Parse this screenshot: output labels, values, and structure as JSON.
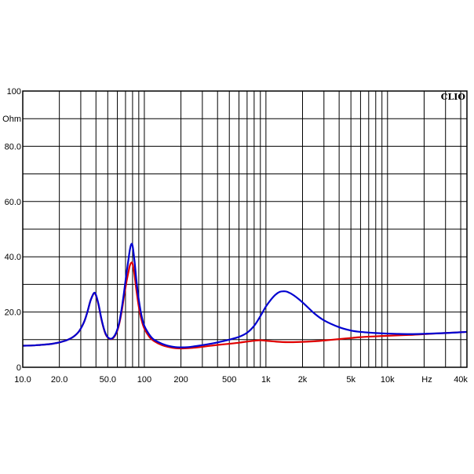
{
  "chart_data": {
    "type": "line",
    "brand_label": "CLIO",
    "y_unit_label": "Ohm",
    "x_unit_label": "Hz",
    "x_scale": "log",
    "xlim": [
      10,
      45000
    ],
    "ylim": [
      0,
      100
    ],
    "grid": true,
    "legend": "none",
    "x_tick_labels": [
      {
        "value": 10,
        "label": "10.0"
      },
      {
        "value": 20,
        "label": "20.0"
      },
      {
        "value": 50,
        "label": "50.0"
      },
      {
        "value": 100,
        "label": "100"
      },
      {
        "value": 200,
        "label": "200"
      },
      {
        "value": 500,
        "label": "500"
      },
      {
        "value": 1000,
        "label": "1k"
      },
      {
        "value": 2000,
        "label": "2k"
      },
      {
        "value": 5000,
        "label": "5k"
      },
      {
        "value": 10000,
        "label": "10k"
      },
      {
        "value": 40000,
        "label": "40k"
      }
    ],
    "y_tick_labels": [
      {
        "value": 0,
        "label": "0"
      },
      {
        "value": 20,
        "label": "20.0"
      },
      {
        "value": 40,
        "label": "40.0"
      },
      {
        "value": 60,
        "label": "60.0"
      },
      {
        "value": 80,
        "label": "80.0"
      },
      {
        "value": 100,
        "label": "100"
      }
    ],
    "series": [
      {
        "color": "#e00000",
        "points": [
          [
            10,
            7.8
          ],
          [
            12,
            7.9
          ],
          [
            14,
            8.1
          ],
          [
            16,
            8.3
          ],
          [
            18,
            8.6
          ],
          [
            20,
            9.0
          ],
          [
            23,
            9.8
          ],
          [
            26,
            11.0
          ],
          [
            29,
            13.0
          ],
          [
            32,
            16.5
          ],
          [
            34,
            20.0
          ],
          [
            36,
            24.0
          ],
          [
            38,
            26.5
          ],
          [
            39,
            26.8
          ],
          [
            40,
            26.0
          ],
          [
            42,
            22.5
          ],
          [
            44,
            18.0
          ],
          [
            46,
            14.5
          ],
          [
            48,
            12.0
          ],
          [
            50,
            10.8
          ],
          [
            53,
            10.2
          ],
          [
            56,
            10.8
          ],
          [
            59,
            12.5
          ],
          [
            62,
            15.5
          ],
          [
            65,
            20.0
          ],
          [
            68,
            25.5
          ],
          [
            71,
            30.5
          ],
          [
            74,
            34.5
          ],
          [
            76,
            36.8
          ],
          [
            78,
            37.8
          ],
          [
            80,
            37.5
          ],
          [
            83,
            33.5
          ],
          [
            86,
            28.0
          ],
          [
            90,
            22.0
          ],
          [
            95,
            17.0
          ],
          [
            100,
            14.0
          ],
          [
            110,
            11.0
          ],
          [
            120,
            9.5
          ],
          [
            140,
            8.0
          ],
          [
            160,
            7.3
          ],
          [
            180,
            6.9
          ],
          [
            200,
            6.8
          ],
          [
            230,
            6.9
          ],
          [
            260,
            7.1
          ],
          [
            300,
            7.4
          ],
          [
            350,
            7.8
          ],
          [
            400,
            8.1
          ],
          [
            500,
            8.5
          ],
          [
            600,
            8.9
          ],
          [
            700,
            9.3
          ],
          [
            800,
            9.6
          ],
          [
            900,
            9.8
          ],
          [
            1000,
            9.6
          ],
          [
            1200,
            9.3
          ],
          [
            1500,
            9.1
          ],
          [
            2000,
            9.2
          ],
          [
            2500,
            9.4
          ],
          [
            3000,
            9.7
          ],
          [
            4000,
            10.2
          ],
          [
            5000,
            10.6
          ],
          [
            6000,
            10.9
          ],
          [
            8000,
            11.2
          ],
          [
            10000,
            11.4
          ],
          [
            15000,
            11.7
          ],
          [
            20000,
            12.0
          ],
          [
            30000,
            12.4
          ],
          [
            45000,
            12.8
          ]
        ]
      },
      {
        "color": "#0000d0",
        "points": [
          [
            10,
            7.8
          ],
          [
            12,
            7.9
          ],
          [
            14,
            8.1
          ],
          [
            16,
            8.3
          ],
          [
            18,
            8.6
          ],
          [
            20,
            9.0
          ],
          [
            23,
            9.8
          ],
          [
            26,
            11.0
          ],
          [
            29,
            13.0
          ],
          [
            32,
            16.5
          ],
          [
            34,
            20.0
          ],
          [
            36,
            24.0
          ],
          [
            38,
            26.5
          ],
          [
            39,
            27.0
          ],
          [
            40,
            26.2
          ],
          [
            42,
            22.8
          ],
          [
            44,
            18.3
          ],
          [
            46,
            14.7
          ],
          [
            48,
            12.2
          ],
          [
            50,
            10.9
          ],
          [
            53,
            10.3
          ],
          [
            56,
            11.0
          ],
          [
            59,
            12.8
          ],
          [
            62,
            16.0
          ],
          [
            65,
            21.0
          ],
          [
            68,
            27.0
          ],
          [
            71,
            33.5
          ],
          [
            74,
            39.0
          ],
          [
            76,
            42.5
          ],
          [
            78,
            44.5
          ],
          [
            80,
            44.0
          ],
          [
            83,
            38.5
          ],
          [
            86,
            31.5
          ],
          [
            90,
            24.5
          ],
          [
            95,
            18.5
          ],
          [
            100,
            15.0
          ],
          [
            110,
            11.8
          ],
          [
            120,
            10.0
          ],
          [
            140,
            8.5
          ],
          [
            160,
            7.7
          ],
          [
            180,
            7.3
          ],
          [
            200,
            7.2
          ],
          [
            230,
            7.3
          ],
          [
            260,
            7.6
          ],
          [
            300,
            8.0
          ],
          [
            350,
            8.5
          ],
          [
            400,
            9.0
          ],
          [
            500,
            10.0
          ],
          [
            600,
            11.0
          ],
          [
            700,
            12.5
          ],
          [
            800,
            15.0
          ],
          [
            900,
            18.5
          ],
          [
            1000,
            22.0
          ],
          [
            1100,
            24.5
          ],
          [
            1200,
            26.3
          ],
          [
            1300,
            27.3
          ],
          [
            1400,
            27.5
          ],
          [
            1500,
            27.3
          ],
          [
            1700,
            26.0
          ],
          [
            2000,
            23.5
          ],
          [
            2500,
            19.5
          ],
          [
            3000,
            17.0
          ],
          [
            4000,
            14.5
          ],
          [
            5000,
            13.3
          ],
          [
            6000,
            12.8
          ],
          [
            8000,
            12.4
          ],
          [
            10000,
            12.2
          ],
          [
            15000,
            12.0
          ],
          [
            20000,
            12.1
          ],
          [
            30000,
            12.4
          ],
          [
            45000,
            12.8
          ]
        ]
      }
    ]
  }
}
